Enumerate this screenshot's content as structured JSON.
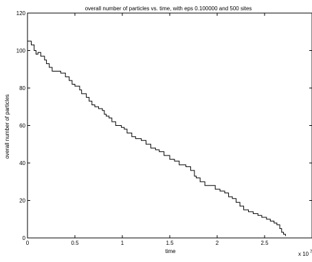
{
  "chart_data": {
    "type": "line",
    "title": "overall number of particles vs. time, with eps 0.100000 and 500 sites",
    "xlabel": "time",
    "ylabel": "overall number of particles",
    "x_multiplier_label": "x 10",
    "x_multiplier_exponent": "7",
    "xlim": [
      0,
      3
    ],
    "ylim": [
      0,
      120
    ],
    "x_ticks": [
      0,
      0.5,
      1,
      1.5,
      2,
      2.5
    ],
    "x_tick_labels": [
      "0",
      "0.5",
      "1",
      "1.5",
      "2",
      "2.5"
    ],
    "y_ticks": [
      0,
      20,
      40,
      60,
      80,
      100,
      120
    ],
    "y_tick_labels": [
      "0",
      "20",
      "40",
      "60",
      "80",
      "100",
      "120"
    ],
    "grid": false,
    "series": [
      {
        "style": "step",
        "color": "#000000",
        "x": [
          0,
          0.04,
          0.07,
          0.09,
          0.11,
          0.14,
          0.18,
          0.2,
          0.23,
          0.26,
          0.3,
          0.35,
          0.4,
          0.44,
          0.47,
          0.5,
          0.53,
          0.55,
          0.57,
          0.62,
          0.65,
          0.68,
          0.71,
          0.75,
          0.79,
          0.81,
          0.83,
          0.86,
          0.89,
          0.93,
          0.96,
          0.99,
          1.02,
          1.05,
          1.1,
          1.14,
          1.2,
          1.25,
          1.3,
          1.35,
          1.39,
          1.44,
          1.5,
          1.55,
          1.6,
          1.67,
          1.72,
          1.76,
          1.78,
          1.82,
          1.87,
          1.93,
          1.98,
          2.03,
          2.08,
          2.12,
          2.16,
          2.2,
          2.24,
          2.28,
          2.33,
          2.38,
          2.43,
          2.47,
          2.52,
          2.56,
          2.6,
          2.63,
          2.66,
          2.68,
          2.7,
          2.72
        ],
        "y": [
          105,
          103,
          100,
          98,
          99,
          97,
          95,
          93,
          91,
          89,
          89,
          88,
          86,
          84,
          82,
          81,
          81,
          79,
          77,
          75,
          73,
          71,
          70,
          69,
          68,
          66,
          65,
          64,
          62,
          60,
          60,
          59,
          58,
          56,
          54,
          53,
          52,
          50,
          48,
          47,
          46,
          44,
          42,
          41,
          39,
          38,
          36,
          33,
          32,
          30,
          28,
          28,
          26,
          25,
          24,
          22,
          21,
          19,
          17,
          15,
          14,
          13,
          12,
          11,
          10,
          9,
          8,
          7,
          5,
          3,
          2,
          1
        ]
      }
    ]
  }
}
